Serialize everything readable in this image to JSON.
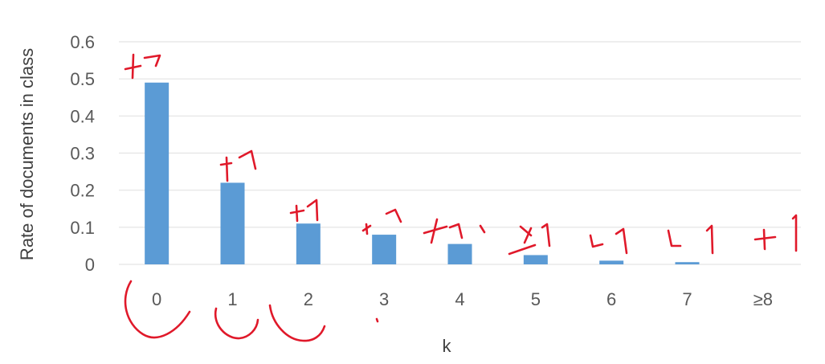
{
  "chart_data": {
    "type": "bar",
    "title": "",
    "xlabel": "k",
    "ylabel": "Rate of documents in class",
    "categories": [
      "0",
      "1",
      "2",
      "3",
      "4",
      "5",
      "6",
      "7",
      "≥8"
    ],
    "values": [
      0.49,
      0.22,
      0.11,
      0.08,
      0.055,
      0.025,
      0.01,
      0.006,
      0.0
    ],
    "ylim": [
      0,
      0.6
    ],
    "yticks": [
      "0",
      "0.1",
      "0.2",
      "0.3",
      "0.4",
      "0.5",
      "0.6"
    ],
    "grid": true,
    "legend": "none",
    "bar_color": "#5b9bd5",
    "gridline_color": "#e3e3e3",
    "annotation_color": "#e0192a"
  }
}
